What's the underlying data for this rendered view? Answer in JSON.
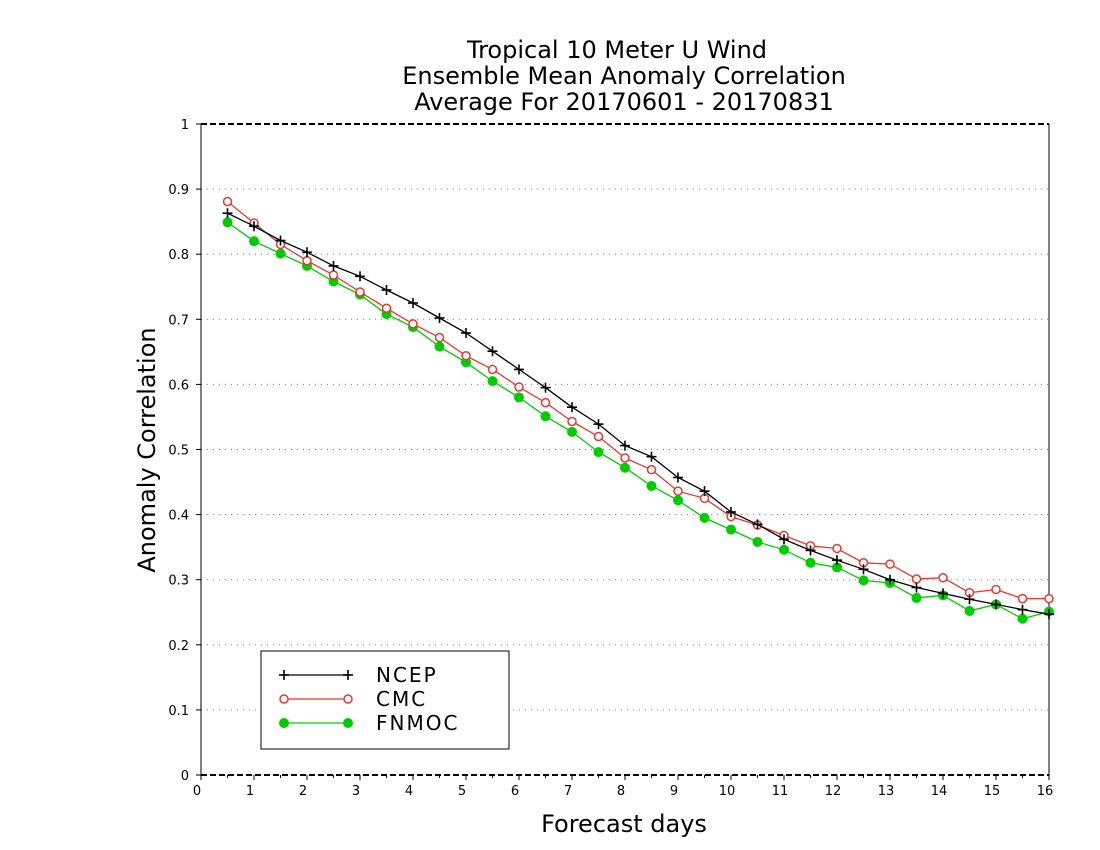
{
  "chart_data": {
    "type": "line",
    "title_lines": [
      "Tropical 10 Meter U Wind",
      "Ensemble Mean Anomaly Correlation",
      "Average For 20170601 - 20170831"
    ],
    "xlabel": "Forecast days",
    "ylabel": "Anomaly Correlation",
    "xlim": [
      0,
      16
    ],
    "ylim": [
      0,
      1
    ],
    "xticks": [
      "0",
      "1",
      "2",
      "3",
      "4",
      "5",
      "6",
      "7",
      "8",
      "9",
      "10",
      "11",
      "12",
      "13",
      "14",
      "15",
      "16"
    ],
    "yticks": [
      "0",
      "0.1",
      "0.2",
      "0.3",
      "0.4",
      "0.5",
      "0.6",
      "0.7",
      "0.8",
      "0.9",
      "1"
    ],
    "grid": true,
    "legend_position": "bottom-left",
    "x": [
      0.5,
      1,
      1.5,
      2,
      2.5,
      3,
      3.5,
      4,
      4.5,
      5,
      5.5,
      6,
      6.5,
      7,
      7.5,
      8,
      8.5,
      9,
      9.5,
      10,
      10.5,
      11,
      11.5,
      12,
      12.5,
      13,
      13.5,
      14,
      14.5,
      15,
      15.5,
      16
    ],
    "series": [
      {
        "name": "NCEP",
        "color": "#000000",
        "marker": "plus",
        "values": [
          0.863,
          0.843,
          0.821,
          0.803,
          0.782,
          0.766,
          0.745,
          0.725,
          0.702,
          0.679,
          0.651,
          0.623,
          0.595,
          0.565,
          0.539,
          0.506,
          0.489,
          0.457,
          0.436,
          0.404,
          0.385,
          0.362,
          0.345,
          0.33,
          0.316,
          0.3,
          0.288,
          0.279,
          0.27,
          0.262,
          0.254,
          0.247
        ]
      },
      {
        "name": "CMC",
        "color": "#e8382f",
        "marker": "open-circle",
        "values": [
          0.881,
          0.848,
          0.815,
          0.79,
          0.768,
          0.742,
          0.717,
          0.693,
          0.672,
          0.644,
          0.623,
          0.596,
          0.572,
          0.543,
          0.52,
          0.487,
          0.469,
          0.436,
          0.425,
          0.397,
          0.384,
          0.368,
          0.352,
          0.348,
          0.326,
          0.324,
          0.301,
          0.303,
          0.28,
          0.285,
          0.271,
          0.271
        ]
      },
      {
        "name": "FNMOC",
        "color": "#00cc00",
        "marker": "filled-circle",
        "values": [
          0.849,
          0.82,
          0.801,
          0.782,
          0.758,
          0.738,
          0.708,
          0.688,
          0.658,
          0.634,
          0.605,
          0.58,
          0.551,
          0.527,
          0.496,
          0.472,
          0.444,
          0.422,
          0.395,
          0.377,
          0.358,
          0.346,
          0.326,
          0.319,
          0.299,
          0.295,
          0.272,
          0.276,
          0.252,
          0.262,
          0.24,
          0.251
        ]
      }
    ]
  }
}
